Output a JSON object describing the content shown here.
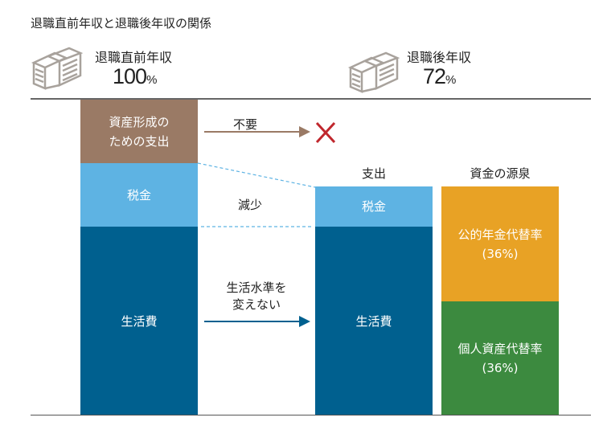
{
  "title": "退職直前年収と退職後年収の関係",
  "before": {
    "label": "退職直前年収",
    "value": "100",
    "unit": "%"
  },
  "after": {
    "label": "退職後年収",
    "value": "72",
    "unit": "%"
  },
  "bar_before": {
    "asset": "資産形成の\nための支出",
    "tax": "税金",
    "living": "生活費"
  },
  "arrows": {
    "unneeded": "不要",
    "decrease": "減少",
    "keep": "生活水準を\n変えない"
  },
  "spend": {
    "header": "支出",
    "tax": "税金",
    "living": "生活費"
  },
  "source": {
    "header": "資金の源泉",
    "public": "公的年金代替率\n(36%)",
    "private": "個人資産代替率\n(36%)"
  },
  "colors": {
    "asset": "#9a7a65",
    "tax": "#5eb3e3",
    "living": "#00608f",
    "public": "#e8a225",
    "private": "#3c8a3f",
    "cross": "#c0272d"
  }
}
